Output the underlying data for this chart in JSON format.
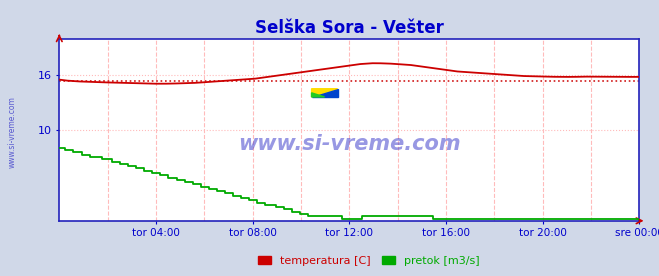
{
  "title": "Selška Sora - Vešter",
  "title_color": "#0000cc",
  "title_fontsize": 12,
  "bg_color": "#d0d8e8",
  "plot_bg_color": "#ffffff",
  "ylim": [
    0,
    20
  ],
  "yticks": [
    10,
    16
  ],
  "tick_color": "#0000cc",
  "xtick_labels": [
    "tor 04:00",
    "tor 08:00",
    "tor 12:00",
    "tor 16:00",
    "tor 20:00",
    "sre 00:00"
  ],
  "xtick_hours": [
    4,
    8,
    12,
    16,
    20,
    24
  ],
  "grid_color": "#ffbbbb",
  "watermark": "www.si-vreme.com",
  "watermark_color": "#4444cc",
  "legend_labels": [
    "temperatura [C]",
    "pretok [m3/s]"
  ],
  "legend_colors": [
    "#cc0000",
    "#00aa00"
  ],
  "avg_line_value": 15.3,
  "avg_line_color": "#cc0000",
  "temp_color": "#cc0000",
  "flow_color": "#00aa00",
  "spine_color": "#2222bb",
  "temp_data": [
    15.5,
    15.4,
    15.35,
    15.3,
    15.28,
    15.25,
    15.22,
    15.2,
    15.18,
    15.16,
    15.14,
    15.12,
    15.1,
    15.08,
    15.06,
    15.05,
    15.05,
    15.06,
    15.08,
    15.1,
    15.12,
    15.15,
    15.2,
    15.25,
    15.3,
    15.35,
    15.4,
    15.45,
    15.5,
    15.55,
    15.6,
    15.7,
    15.8,
    15.9,
    16.0,
    16.1,
    16.2,
    16.3,
    16.4,
    16.5,
    16.6,
    16.7,
    16.8,
    16.9,
    17.0,
    17.1,
    17.2,
    17.25,
    17.3,
    17.3,
    17.28,
    17.25,
    17.2,
    17.15,
    17.1,
    17.0,
    16.9,
    16.8,
    16.7,
    16.6,
    16.5,
    16.4,
    16.35,
    16.3,
    16.25,
    16.2,
    16.15,
    16.1,
    16.05,
    16.0,
    15.95,
    15.9,
    15.88,
    15.85,
    15.83,
    15.82,
    15.81,
    15.8,
    15.8,
    15.8,
    15.82,
    15.83,
    15.82,
    15.81,
    15.8,
    15.8,
    15.8,
    15.8,
    15.8,
    15.8
  ],
  "flow_data": [
    8.0,
    7.8,
    7.6,
    7.4,
    7.2,
    7.0,
    6.9,
    6.8,
    6.6,
    6.4,
    6.2,
    6.0,
    5.8,
    5.6,
    5.4,
    5.2,
    5.0,
    4.8,
    4.6,
    4.4,
    4.2,
    4.0,
    3.8,
    3.6,
    3.4,
    3.2,
    3.0,
    2.8,
    2.6,
    2.4,
    2.2,
    2.0,
    1.8,
    1.6,
    1.4,
    1.2,
    1.0,
    0.8,
    0.6,
    0.5,
    0.45,
    0.42,
    0.4,
    0.38,
    0.35,
    0.35,
    0.35,
    0.4,
    0.45,
    0.5,
    0.5,
    0.48,
    0.45,
    0.43,
    0.42,
    0.4,
    0.4,
    0.38,
    0.35,
    0.35,
    0.35,
    0.35,
    0.35,
    0.35,
    0.35,
    0.35,
    0.35,
    0.35,
    0.35,
    0.35,
    0.35,
    0.35,
    0.35,
    0.35,
    0.35,
    0.35,
    0.35,
    0.35,
    0.35,
    0.35,
    0.35,
    0.35,
    0.35,
    0.35,
    0.35,
    0.35,
    0.35,
    0.35,
    0.35,
    0.35
  ]
}
